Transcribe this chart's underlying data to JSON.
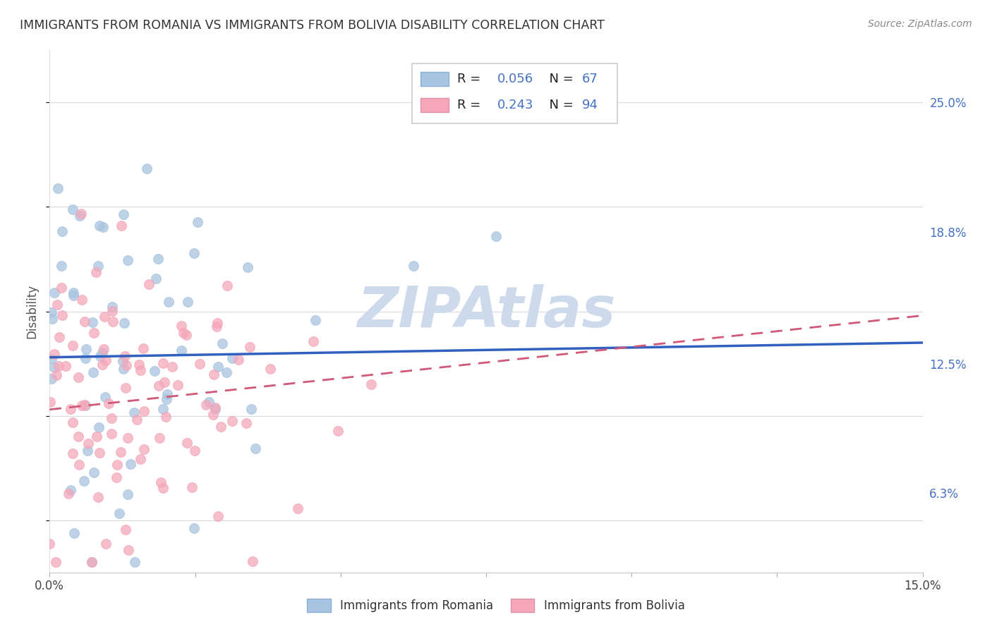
{
  "title": "IMMIGRANTS FROM ROMANIA VS IMMIGRANTS FROM BOLIVIA DISABILITY CORRELATION CHART",
  "source": "Source: ZipAtlas.com",
  "ylabel": "Disability",
  "ytick_labels": [
    "6.3%",
    "12.5%",
    "18.8%",
    "25.0%"
  ],
  "ytick_values": [
    0.063,
    0.125,
    0.188,
    0.25
  ],
  "xmin": 0.0,
  "xmax": 0.15,
  "ymin": 0.025,
  "ymax": 0.275,
  "romania_R": 0.056,
  "romania_N": 67,
  "bolivia_R": 0.243,
  "bolivia_N": 94,
  "romania_color": "#a8c4e0",
  "bolivia_color": "#f4a7b9",
  "romania_line_color": "#3060c0",
  "bolivia_line_color": "#d05878",
  "watermark_color": "#ccdaec",
  "ro_line_y0": 0.128,
  "ro_line_y1": 0.135,
  "bo_line_y0": 0.103,
  "bo_line_y1": 0.148
}
